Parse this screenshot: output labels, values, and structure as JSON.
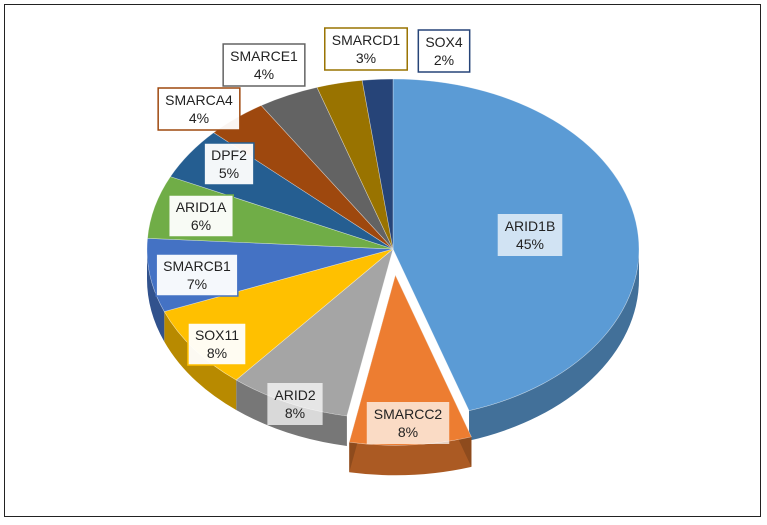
{
  "chart_data": {
    "type": "pie",
    "slices": [
      {
        "name": "ARID1B",
        "value": 45,
        "label": "45%",
        "color": "#5B9BD5"
      },
      {
        "name": "SMARCC2",
        "value": 8,
        "label": "8%",
        "color": "#ED7D31"
      },
      {
        "name": "ARID2",
        "value": 8,
        "label": "8%",
        "color": "#A5A5A5"
      },
      {
        "name": "SOX11",
        "value": 8,
        "label": "8%",
        "color": "#FFC000"
      },
      {
        "name": "SMARCB1",
        "value": 7,
        "label": "7%",
        "color": "#4472C4"
      },
      {
        "name": "ARID1A",
        "value": 6,
        "label": "6%",
        "color": "#70AD47"
      },
      {
        "name": "DPF2",
        "value": 5,
        "label": "5%",
        "color": "#255E91"
      },
      {
        "name": "SMARCA4",
        "value": 4,
        "label": "4%",
        "color": "#9E480E"
      },
      {
        "name": "SMARCE1",
        "value": 4,
        "label": "4%",
        "color": "#636363"
      },
      {
        "name": "SMARCD1",
        "value": 3,
        "label": "3%",
        "color": "#997300"
      },
      {
        "name": "SOX4",
        "value": 2,
        "label": "2%",
        "color": "#264478"
      }
    ],
    "style": "3d-exploded"
  }
}
